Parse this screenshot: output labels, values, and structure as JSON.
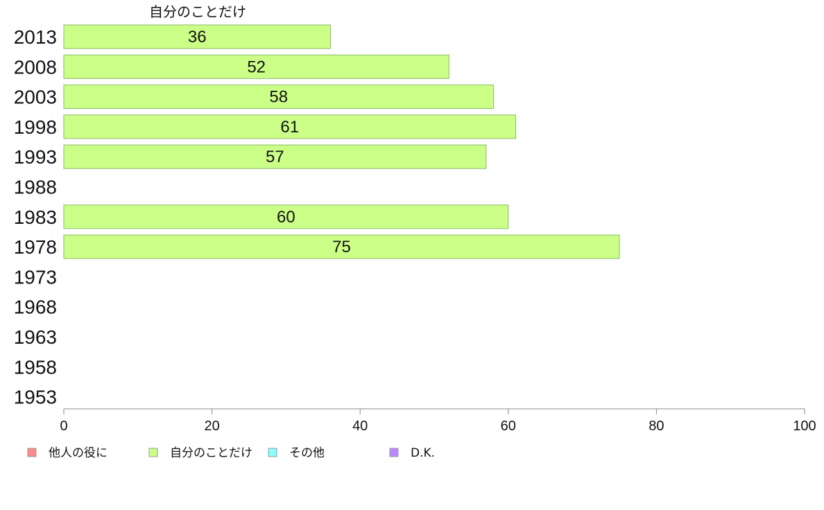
{
  "chart_data": {
    "type": "bar",
    "orientation": "horizontal",
    "series_title": "自分のことだけ",
    "categories": [
      "2013",
      "2008",
      "2003",
      "1998",
      "1993",
      "1988",
      "1983",
      "1978",
      "1973",
      "1968",
      "1963",
      "1958",
      "1953"
    ],
    "series": [
      {
        "name": "自分のことだけ",
        "color": "#ccff88",
        "values": [
          36,
          52,
          58,
          61,
          57,
          null,
          60,
          75,
          null,
          null,
          null,
          null,
          null
        ]
      }
    ],
    "xlim": [
      0,
      100
    ],
    "xticks": [
      0,
      20,
      40,
      60,
      80,
      100
    ],
    "xlabel": "",
    "ylabel": "",
    "grid": false,
    "legend_position": "bottom",
    "legend": [
      {
        "label": "他人の役に",
        "color": "#ff8888"
      },
      {
        "label": "自分のことだけ",
        "color": "#ccff88"
      },
      {
        "label": "その他",
        "color": "#88ffff"
      },
      {
        "label": "D.K.",
        "color": "#bb88ff"
      }
    ]
  }
}
